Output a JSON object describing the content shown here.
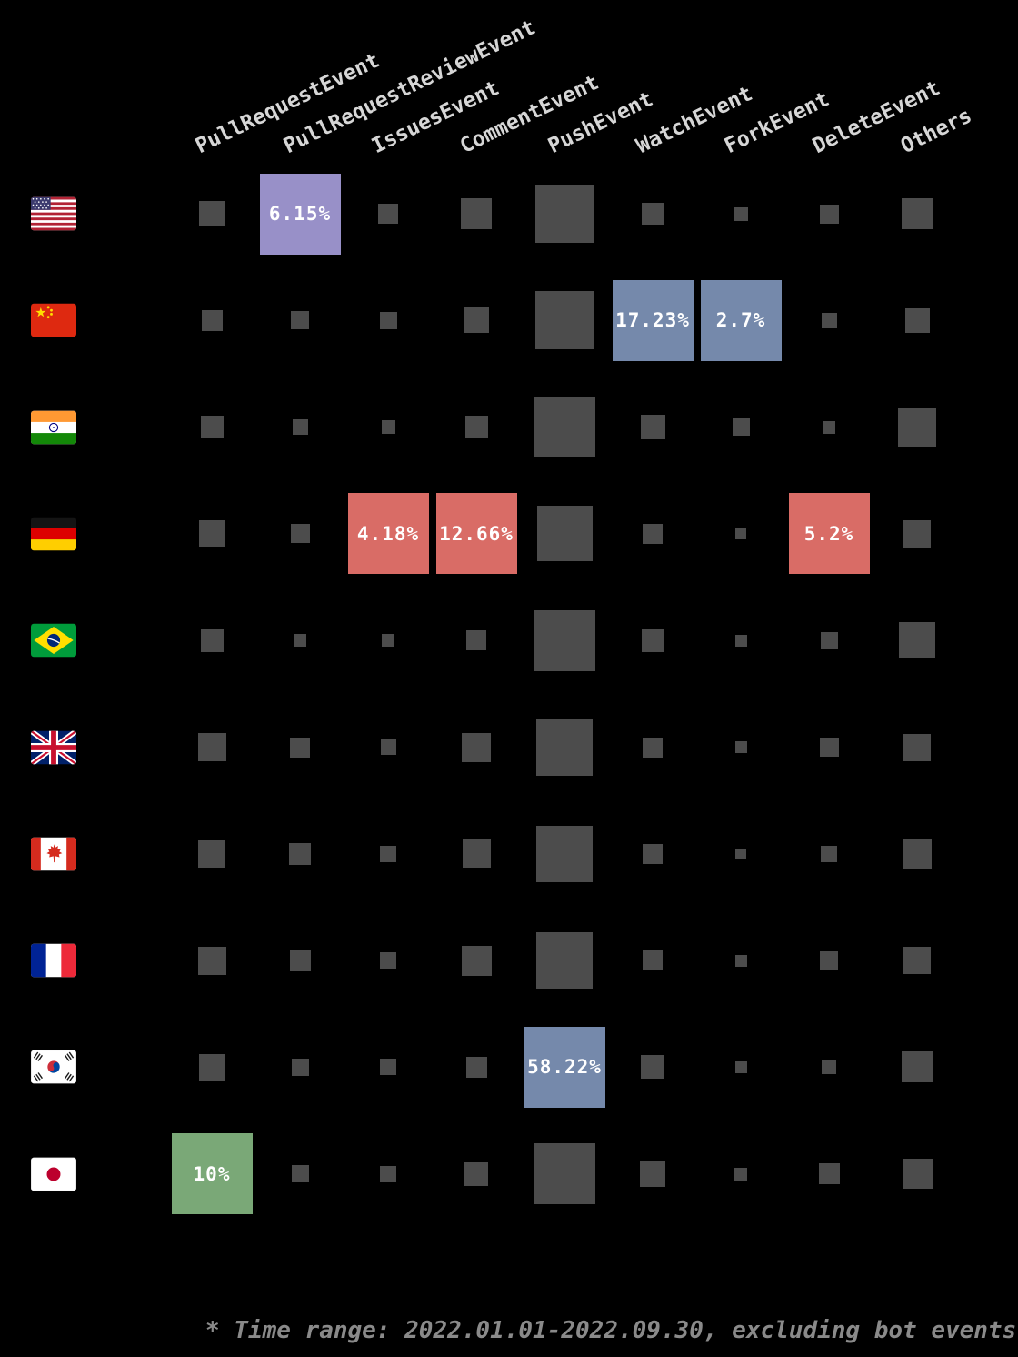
{
  "chart_data": {
    "type": "heatmap",
    "columns": [
      "PullRequestEvent",
      "PullRequestReviewEvent",
      "IssuesEvent",
      "CommentEvent",
      "PushEvent",
      "WatchEvent",
      "ForkEvent",
      "DeleteEvent",
      "Others"
    ],
    "rows": [
      {
        "id": "us",
        "country": "United States",
        "flag_icon": "us-flag-icon"
      },
      {
        "id": "cn",
        "country": "China",
        "flag_icon": "china-flag-icon"
      },
      {
        "id": "in",
        "country": "India",
        "flag_icon": "india-flag-icon"
      },
      {
        "id": "de",
        "country": "Germany",
        "flag_icon": "germany-flag-icon"
      },
      {
        "id": "br",
        "country": "Brazil",
        "flag_icon": "brazil-flag-icon"
      },
      {
        "id": "gb",
        "country": "United Kingdom",
        "flag_icon": "uk-flag-icon"
      },
      {
        "id": "ca",
        "country": "Canada",
        "flag_icon": "canada-flag-icon"
      },
      {
        "id": "fr",
        "country": "France",
        "flag_icon": "france-flag-icon"
      },
      {
        "id": "kr",
        "country": "South Korea",
        "flag_icon": "south-korea-flag-icon"
      },
      {
        "id": "jp",
        "country": "Japan",
        "flag_icon": "japan-flag-icon"
      }
    ],
    "cells": [
      [
        {
          "size": 28
        },
        {
          "pct": "6.15%",
          "color": "purple"
        },
        {
          "size": 22
        },
        {
          "size": 34
        },
        {
          "size": 64
        },
        {
          "size": 24
        },
        {
          "size": 15
        },
        {
          "size": 21
        },
        {
          "size": 34
        }
      ],
      [
        {
          "size": 23
        },
        {
          "size": 20
        },
        {
          "size": 19
        },
        {
          "size": 28
        },
        {
          "size": 64
        },
        {
          "pct": "17.23%",
          "color": "blue"
        },
        {
          "pct": "2.7%",
          "color": "blue"
        },
        {
          "size": 17
        },
        {
          "size": 27
        }
      ],
      [
        {
          "size": 25
        },
        {
          "size": 17
        },
        {
          "size": 15
        },
        {
          "size": 25
        },
        {
          "size": 67
        },
        {
          "size": 27
        },
        {
          "size": 19
        },
        {
          "size": 14
        },
        {
          "size": 42
        }
      ],
      [
        {
          "size": 29
        },
        {
          "size": 21
        },
        {
          "pct": "4.18%",
          "color": "red"
        },
        {
          "pct": "12.66%",
          "color": "red"
        },
        {
          "size": 61
        },
        {
          "size": 22
        },
        {
          "size": 12
        },
        {
          "pct": "5.2%",
          "color": "red"
        },
        {
          "size": 30
        }
      ],
      [
        {
          "size": 25
        },
        {
          "size": 14
        },
        {
          "size": 14
        },
        {
          "size": 22
        },
        {
          "size": 67
        },
        {
          "size": 25
        },
        {
          "size": 13
        },
        {
          "size": 19
        },
        {
          "size": 40
        }
      ],
      [
        {
          "size": 31
        },
        {
          "size": 22
        },
        {
          "size": 17
        },
        {
          "size": 32
        },
        {
          "size": 62
        },
        {
          "size": 22
        },
        {
          "size": 13
        },
        {
          "size": 21
        },
        {
          "size": 30
        }
      ],
      [
        {
          "size": 30
        },
        {
          "size": 24
        },
        {
          "size": 18
        },
        {
          "size": 31
        },
        {
          "size": 62
        },
        {
          "size": 22
        },
        {
          "size": 12
        },
        {
          "size": 18
        },
        {
          "size": 32
        }
      ],
      [
        {
          "size": 31
        },
        {
          "size": 23
        },
        {
          "size": 18
        },
        {
          "size": 33
        },
        {
          "size": 62
        },
        {
          "size": 22
        },
        {
          "size": 13
        },
        {
          "size": 20
        },
        {
          "size": 30
        }
      ],
      [
        {
          "size": 29
        },
        {
          "size": 19
        },
        {
          "size": 18
        },
        {
          "size": 23
        },
        {
          "pct": "58.22%",
          "color": "blue"
        },
        {
          "size": 26
        },
        {
          "size": 13
        },
        {
          "size": 16
        },
        {
          "size": 34
        }
      ],
      [
        {
          "pct": "10%",
          "color": "green"
        },
        {
          "size": 19
        },
        {
          "size": 18
        },
        {
          "size": 26
        },
        {
          "size": 67
        },
        {
          "size": 28
        },
        {
          "size": 14
        },
        {
          "size": 23
        },
        {
          "size": 33
        }
      ]
    ],
    "colors": {
      "background": "#000000",
      "square": "#4c4c4c",
      "purple": "#9890c8",
      "blue": "#7589ab",
      "red": "#d96c66",
      "green": "#7aa877",
      "column_label": "#d6d6d6",
      "value_label": "#ffffff",
      "note": "#8a8a8a"
    },
    "note": "* Time range: 2022.01.01-2022.09.30, excluding bot events"
  }
}
